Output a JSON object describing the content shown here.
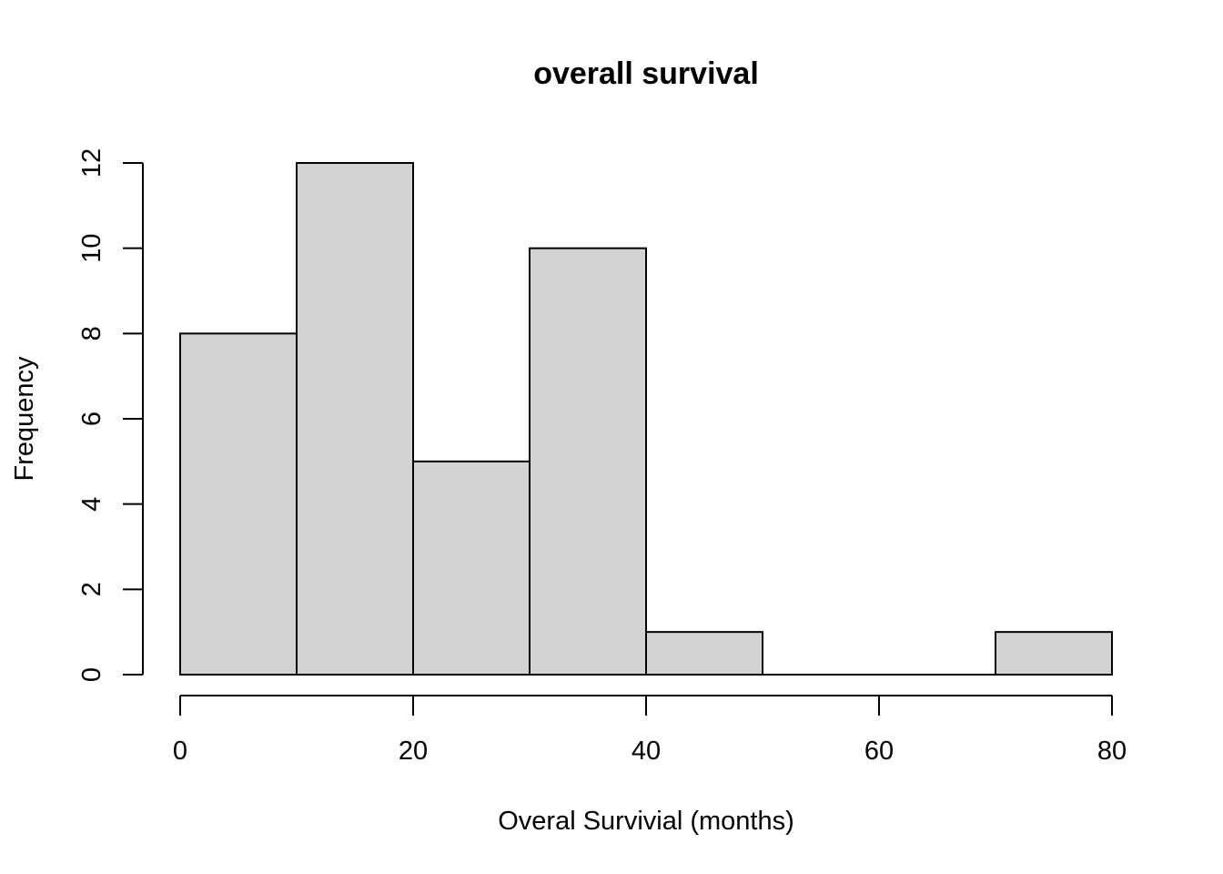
{
  "chart_data": {
    "type": "bar",
    "title": "overall survival",
    "xlabel": "Overal Survivial (months)",
    "ylabel": "Frequency",
    "bins": [
      {
        "x0": 0,
        "x1": 10,
        "count": 8
      },
      {
        "x0": 10,
        "x1": 20,
        "count": 12
      },
      {
        "x0": 20,
        "x1": 30,
        "count": 5
      },
      {
        "x0": 30,
        "x1": 40,
        "count": 10
      },
      {
        "x0": 40,
        "x1": 50,
        "count": 1
      },
      {
        "x0": 50,
        "x1": 60,
        "count": 0
      },
      {
        "x0": 60,
        "x1": 70,
        "count": 0
      },
      {
        "x0": 70,
        "x1": 80,
        "count": 1
      }
    ],
    "xlim": [
      0,
      80
    ],
    "ylim": [
      0,
      12
    ],
    "xticks": [
      "0",
      "20",
      "40",
      "60",
      "80"
    ],
    "yticks": [
      "0",
      "2",
      "4",
      "6",
      "8",
      "10",
      "12"
    ],
    "bar_color": "#d3d3d3",
    "edge_color": "#000000",
    "grid": false
  }
}
